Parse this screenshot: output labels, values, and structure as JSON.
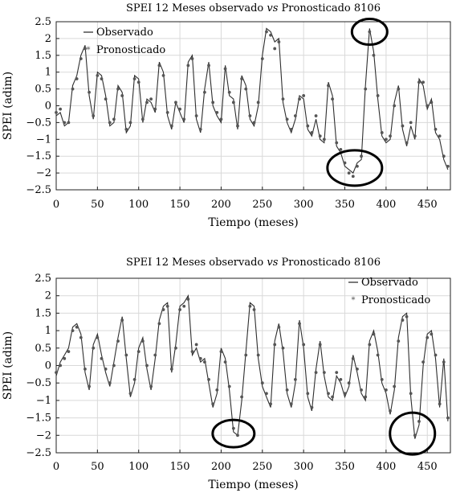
{
  "chart_data": [
    {
      "type": "line",
      "title": "SPEI 12 Meses observado vs Pronosticado 8106",
      "title_parts": [
        "SPEI 12 Meses observado ",
        "vs",
        " Pronosticado 8106"
      ],
      "xlabel": "Tiempo (meses)",
      "ylabel": "SPEI (adim)",
      "xlim": [
        0,
        478
      ],
      "ylim": [
        -2.5,
        2.5
      ],
      "xticks": [
        0,
        50,
        100,
        150,
        200,
        250,
        300,
        350,
        400,
        450
      ],
      "yticks": [
        2.5,
        2,
        1.5,
        1,
        0.5,
        0,
        -0.5,
        -1,
        -1.5,
        -2,
        -2.5
      ],
      "grid": true,
      "legend_position": "top-left",
      "legend": [
        "Observado",
        "Pronosticado"
      ],
      "x": [
        0,
        5,
        10,
        15,
        20,
        25,
        30,
        35,
        40,
        45,
        50,
        55,
        60,
        65,
        70,
        75,
        80,
        85,
        90,
        95,
        100,
        105,
        110,
        115,
        120,
        125,
        130,
        135,
        140,
        145,
        150,
        155,
        160,
        165,
        170,
        175,
        180,
        185,
        190,
        195,
        200,
        205,
        210,
        215,
        220,
        225,
        230,
        235,
        240,
        245,
        250,
        255,
        260,
        265,
        270,
        275,
        280,
        285,
        290,
        295,
        300,
        305,
        310,
        315,
        320,
        325,
        330,
        335,
        340,
        345,
        350,
        355,
        360,
        365,
        370,
        375,
        380,
        385,
        390,
        395,
        400,
        405,
        410,
        415,
        420,
        425,
        430,
        435,
        440,
        445,
        450,
        455,
        460,
        465,
        470,
        475
      ],
      "series": [
        {
          "name": "Observado",
          "values": [
            -0.3,
            -0.2,
            -0.6,
            -0.5,
            0.6,
            0.9,
            1.5,
            1.8,
            0.3,
            -0.4,
            1.0,
            0.9,
            0.3,
            -0.6,
            -0.5,
            0.6,
            0.4,
            -0.8,
            -0.6,
            0.9,
            0.8,
            -0.5,
            0.2,
            0.1,
            -0.2,
            1.3,
            1.0,
            -0.3,
            -0.7,
            0.1,
            -0.2,
            -0.5,
            1.3,
            1.5,
            -0.4,
            -0.8,
            0.5,
            1.3,
            0.0,
            -0.3,
            -0.5,
            1.2,
            0.3,
            0.2,
            -0.7,
            0.9,
            0.6,
            -0.4,
            -0.6,
            0.0,
            1.5,
            2.3,
            2.2,
            1.9,
            2.0,
            0.1,
            -0.5,
            -0.8,
            -0.4,
            0.3,
            0.2,
            -0.7,
            -0.9,
            -0.4,
            -1.0,
            -1.1,
            0.7,
            0.3,
            -1.2,
            -1.4,
            -1.8,
            -1.9,
            -2.0,
            -1.7,
            -1.6,
            0.6,
            2.3,
            1.6,
            0.2,
            -0.9,
            -1.1,
            -1.0,
            0.1,
            0.6,
            -0.7,
            -1.2,
            -0.6,
            -1.0,
            0.8,
            0.6,
            -0.1,
            0.2,
            -0.8,
            -1.0,
            -1.6,
            -1.9
          ]
        },
        {
          "name": "Pronosticado",
          "values": [
            -0.2,
            -0.1,
            -0.5,
            -0.5,
            0.5,
            0.8,
            1.4,
            1.7,
            0.4,
            -0.3,
            0.9,
            0.8,
            0.2,
            -0.5,
            -0.4,
            0.5,
            0.3,
            -0.7,
            -0.5,
            0.8,
            0.7,
            -0.4,
            0.1,
            0.2,
            -0.1,
            1.2,
            0.9,
            -0.2,
            -0.6,
            0.1,
            -0.1,
            -0.4,
            1.2,
            1.4,
            -0.3,
            -0.7,
            0.4,
            1.2,
            0.1,
            -0.2,
            -0.4,
            1.1,
            0.4,
            0.1,
            -0.6,
            0.8,
            0.5,
            -0.3,
            -0.5,
            0.1,
            1.4,
            2.2,
            2.1,
            1.7,
            1.9,
            0.2,
            -0.4,
            -0.7,
            -0.3,
            0.2,
            0.3,
            -0.6,
            -0.8,
            -0.3,
            -0.9,
            -1.0,
            0.6,
            0.2,
            -1.1,
            -1.3,
            -1.7,
            -2.0,
            -2.1,
            -1.8,
            -1.5,
            0.5,
            2.2,
            1.5,
            0.3,
            -0.8,
            -1.0,
            -0.9,
            0.0,
            0.5,
            -0.6,
            -1.1,
            -0.5,
            -0.9,
            0.7,
            0.7,
            0.0,
            0.1,
            -0.7,
            -0.9,
            -1.5,
            -1.8
          ]
        }
      ],
      "highlight_circles": [
        {
          "x": 380,
          "y": 2.2
        },
        {
          "x": 362,
          "y": -1.85
        }
      ]
    },
    {
      "type": "line",
      "title": "SPEI 12 Meses observado vs Pronosticado 8106",
      "title_parts": [
        "SPEI 12 Meses observado ",
        "vs",
        " Pronosticado 8106"
      ],
      "xlabel": "Tiempo (meses)",
      "ylabel": "SPEI (adim)",
      "xlim": [
        0,
        478
      ],
      "ylim": [
        -2.5,
        2.5
      ],
      "xticks": [
        0,
        50,
        100,
        150,
        200,
        250,
        300,
        350,
        400,
        450
      ],
      "yticks": [
        2.5,
        2,
        1.5,
        1,
        0.5,
        0,
        -0.5,
        -1,
        -1.5,
        -2,
        -2.5
      ],
      "grid": true,
      "legend_position": "top-right",
      "legend": [
        "Observado",
        "Pronosticado"
      ],
      "x": [
        0,
        5,
        10,
        15,
        20,
        25,
        30,
        35,
        40,
        45,
        50,
        55,
        60,
        65,
        70,
        75,
        80,
        85,
        90,
        95,
        100,
        105,
        110,
        115,
        120,
        125,
        130,
        135,
        140,
        145,
        150,
        155,
        160,
        165,
        170,
        175,
        180,
        185,
        190,
        195,
        200,
        205,
        210,
        215,
        220,
        225,
        230,
        235,
        240,
        245,
        250,
        255,
        260,
        265,
        270,
        275,
        280,
        285,
        290,
        295,
        300,
        305,
        310,
        315,
        320,
        325,
        330,
        335,
        340,
        345,
        350,
        355,
        360,
        365,
        370,
        375,
        380,
        385,
        390,
        395,
        400,
        405,
        410,
        415,
        420,
        425,
        430,
        435,
        440,
        445,
        450,
        455,
        460,
        465,
        470,
        475
      ],
      "series": [
        {
          "name": "Observado",
          "values": [
            -0.3,
            0.1,
            0.3,
            0.5,
            1.1,
            1.2,
            0.9,
            -0.2,
            -0.7,
            0.6,
            0.9,
            0.3,
            -0.2,
            -0.6,
            0.1,
            0.8,
            1.4,
            0.2,
            -0.9,
            -0.5,
            0.5,
            0.8,
            -0.1,
            -0.7,
            0.2,
            1.3,
            1.7,
            1.8,
            -0.2,
            0.6,
            1.7,
            1.8,
            2.0,
            0.3,
            0.5,
            0.1,
            0.2,
            -0.5,
            -1.2,
            -0.8,
            0.5,
            0.2,
            -0.7,
            -1.9,
            -2.0,
            -1.0,
            0.4,
            1.8,
            1.7,
            0.2,
            -0.6,
            -0.9,
            -1.2,
            0.7,
            1.2,
            0.4,
            -0.8,
            -1.2,
            -0.5,
            1.3,
            0.5,
            -0.9,
            -1.3,
            -0.1,
            0.7,
            -0.3,
            -0.9,
            -1.0,
            -0.3,
            -0.5,
            -0.9,
            -0.6,
            0.3,
            -0.2,
            -0.8,
            -1.0,
            0.7,
            1.0,
            0.4,
            -0.5,
            -0.8,
            -1.4,
            -0.7,
            0.8,
            1.4,
            1.5,
            -0.9,
            -2.1,
            -1.7,
            0.0,
            0.9,
            1.0,
            0.2,
            -1.2,
            0.2,
            -1.6
          ]
        },
        {
          "name": "Pronosticado",
          "values": [
            -0.2,
            0.0,
            0.2,
            0.4,
            1.0,
            1.1,
            0.8,
            -0.1,
            -0.6,
            0.5,
            0.8,
            0.2,
            -0.1,
            -0.5,
            0.0,
            0.7,
            1.3,
            0.3,
            -0.8,
            -0.4,
            0.4,
            0.7,
            0.0,
            -0.6,
            0.3,
            1.2,
            1.6,
            1.7,
            -0.1,
            0.5,
            1.6,
            1.7,
            1.9,
            0.4,
            0.6,
            0.2,
            0.1,
            -0.4,
            -1.1,
            -0.7,
            0.4,
            0.1,
            -0.6,
            -1.8,
            -2.0,
            -0.9,
            0.3,
            1.7,
            1.6,
            0.3,
            -0.5,
            -0.8,
            -1.1,
            0.6,
            1.1,
            0.5,
            -0.7,
            -1.1,
            -0.4,
            1.2,
            0.6,
            -0.8,
            -1.2,
            -0.2,
            0.6,
            -0.2,
            -0.8,
            -0.9,
            -0.2,
            -0.4,
            -0.8,
            -0.5,
            0.2,
            -0.1,
            -0.7,
            -0.9,
            0.6,
            0.9,
            0.3,
            -0.4,
            -0.7,
            -1.3,
            -0.6,
            0.7,
            1.3,
            1.4,
            -0.8,
            -2.0,
            -1.6,
            0.1,
            0.8,
            0.9,
            0.3,
            -1.1,
            0.1,
            -1.5
          ]
        }
      ],
      "highlight_circles": [
        {
          "x": 215,
          "y": -1.95
        },
        {
          "x": 432,
          "y": -1.95
        }
      ]
    }
  ]
}
